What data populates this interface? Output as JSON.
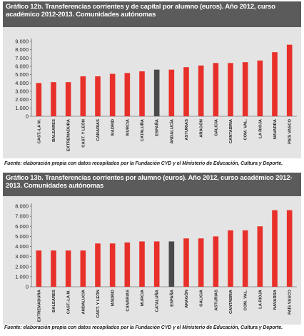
{
  "chart_data": [
    {
      "type": "bar",
      "title": "Gráfico 12b. Transferencias corrientes y de capital por alumno (euros). Año 2012, curso académico 2012-2013. Comunidades autónomas",
      "categories": [
        "CAST.-LA M.",
        "BALEARES",
        "EXTREMADURA",
        "CAST. Y LEÓN",
        "CANARIAS",
        "MADRID",
        "MURCIA",
        "CATALUÑA",
        "ESPAÑA",
        "ANDALUCÍA",
        "ASTURIAS",
        "ARAGÓN",
        "GALICIA",
        "CANTABRIA",
        "COM. VAL.",
        "LA RIOJA",
        "NAVARRA",
        "PAÍS VASCO"
      ],
      "values": [
        4000,
        4100,
        4100,
        4800,
        4800,
        5100,
        5200,
        5400,
        5600,
        5600,
        5900,
        6100,
        6400,
        6400,
        6500,
        6700,
        7700,
        8600
      ],
      "colors": [
        "#e8302a",
        "#e8302a",
        "#e8302a",
        "#e8302a",
        "#e8302a",
        "#e8302a",
        "#e8302a",
        "#e8302a",
        "#4a4a4a",
        "#e8302a",
        "#e8302a",
        "#e8302a",
        "#e8302a",
        "#e8302a",
        "#e8302a",
        "#e8302a",
        "#e8302a",
        "#e8302a"
      ],
      "ylim": [
        0,
        9000
      ],
      "yticks": [
        0,
        {
          "value": 1000,
          "label": "1.000"
        },
        {
          "value": 2000,
          "label": "2.000"
        },
        {
          "value": 3000,
          "label": "3.000"
        },
        {
          "value": 4000,
          "label": "4.000"
        },
        {
          "value": 5000,
          "label": "5.000"
        },
        {
          "value": 6000,
          "label": "6.000"
        },
        {
          "value": 7000,
          "label": "7.000"
        },
        {
          "value": 8000,
          "label": "8.000"
        },
        {
          "value": 9000,
          "label": "9.000"
        }
      ],
      "source": "Fuente: elaboración propia con datos recopilados por la Fundación CYD y el Ministerio de Educación, Cultura y Deporte."
    },
    {
      "type": "bar",
      "title": "Gráfico 13b. Transferencias corrientes por alumno (euros). Año 2012, curso académico 2012-2013. Comunidades autónomas",
      "categories": [
        "EXTREMADURA",
        "BALEARES",
        "CAST.-LA M.",
        "ANDALUCÍA",
        "CAST. Y LEÓN",
        "MADRID",
        "CANARIAS",
        "MURCIA",
        "CATALUÑA",
        "ESPAÑA",
        "ARAGÓN",
        "GALICIA",
        "ASTURIAS",
        "CANTABRIA",
        "COM. VAL.",
        "LA RIOJA",
        "NAVARRA",
        "PAÍS VASCO"
      ],
      "values": [
        3600,
        3600,
        3600,
        3600,
        4300,
        4300,
        4400,
        4500,
        4500,
        4500,
        4800,
        4800,
        5000,
        5600,
        5600,
        6000,
        7600,
        7600
      ],
      "colors": [
        "#e8302a",
        "#e8302a",
        "#e8302a",
        "#e8302a",
        "#e8302a",
        "#e8302a",
        "#e8302a",
        "#e8302a",
        "#e8302a",
        "#4a4a4a",
        "#e8302a",
        "#e8302a",
        "#e8302a",
        "#e8302a",
        "#e8302a",
        "#e8302a",
        "#e8302a",
        "#e8302a"
      ],
      "ylim": [
        0,
        8000
      ],
      "yticks": [
        0,
        {
          "value": 1000,
          "label": "1.000"
        },
        {
          "value": 2000,
          "label": "2.000"
        },
        {
          "value": 3000,
          "label": "3.000"
        },
        {
          "value": 4000,
          "label": "4.000"
        },
        {
          "value": 5000,
          "label": "5.000"
        },
        {
          "value": 6000,
          "label": "6.000"
        },
        {
          "value": 7000,
          "label": "7.000"
        },
        {
          "value": 8000,
          "label": "8.000"
        }
      ],
      "source": "Fuente: elaboración propia con datos recopilados por la Fundación CYD y el Ministerio de Educación, Cultura y Deporte."
    }
  ]
}
